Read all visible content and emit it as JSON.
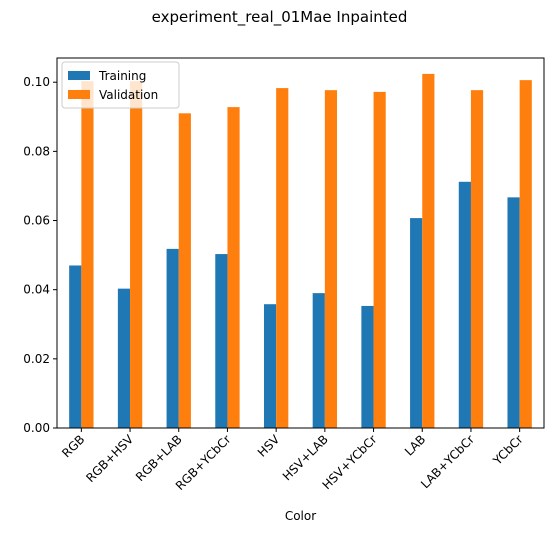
{
  "chart_data": {
    "type": "bar",
    "title": "experiment_real_01Mae Inpainted",
    "xlabel": "Color",
    "ylabel": "",
    "categories": [
      "RGB",
      "RGB+HSV",
      "RGB+LAB",
      "RGB+YCbCr",
      "HSV",
      "HSV+LAB",
      "HSV+YCbCr",
      "LAB",
      "LAB+YCbCr",
      "YCbCr"
    ],
    "series": [
      {
        "name": "Training",
        "color": "#1f77b4",
        "values": [
          0.047,
          0.0403,
          0.0518,
          0.0503,
          0.0358,
          0.039,
          0.0353,
          0.0607,
          0.0712,
          0.0667
        ]
      },
      {
        "name": "Validation",
        "color": "#ff7f0e",
        "values": [
          0.1003,
          0.1003,
          0.091,
          0.0928,
          0.0983,
          0.0977,
          0.0972,
          0.1024,
          0.0977,
          0.1006
        ]
      }
    ],
    "ylim": [
      0,
      0.107
    ],
    "yticks": [
      "0.00",
      "0.02",
      "0.04",
      "0.06",
      "0.08",
      "0.10"
    ],
    "legend": "top-left",
    "grid": false
  }
}
